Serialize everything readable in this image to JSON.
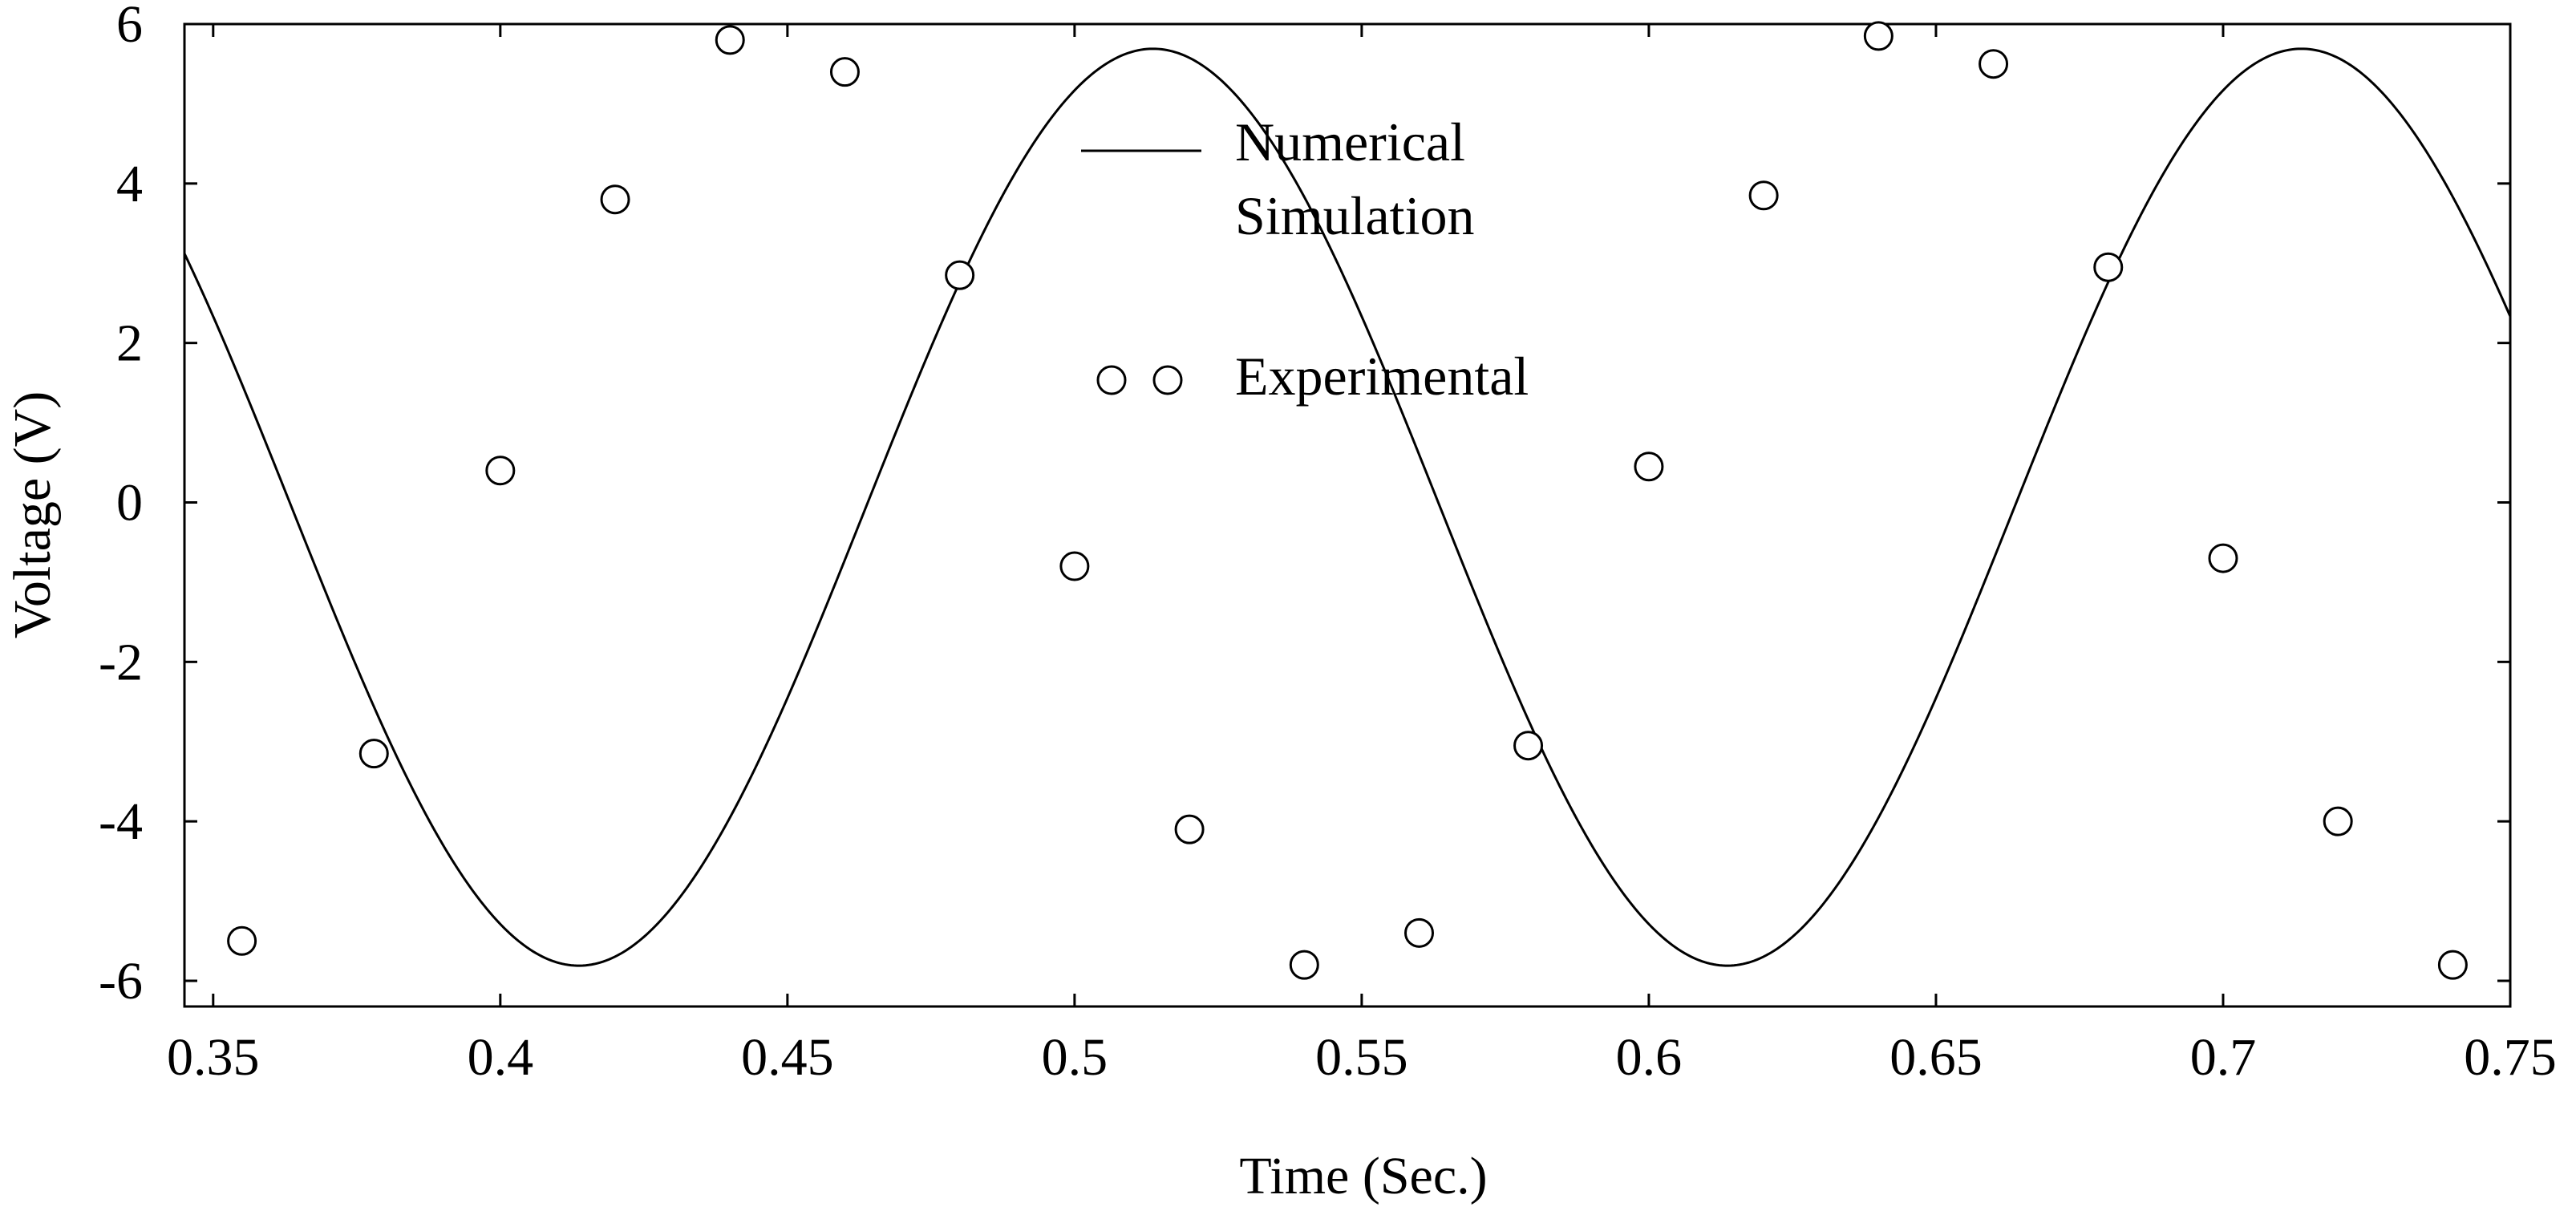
{
  "chart_data": {
    "type": "line",
    "title": "",
    "xlabel": "Time (Sec.)",
    "ylabel": "Voltage (V)",
    "xlim": [
      0.345,
      0.75
    ],
    "ylim": [
      -6,
      6
    ],
    "xticks": [
      0.35,
      0.4,
      0.45,
      0.5,
      0.55,
      0.6,
      0.65,
      0.7,
      0.75
    ],
    "xtick_labels": [
      "0.35",
      "0.4",
      "0.45",
      "0.5",
      "0.55",
      "0.6",
      "0.65",
      "0.7",
      "0.75"
    ],
    "yticks": [
      6,
      4,
      2,
      0,
      -2,
      -4,
      -6
    ],
    "ytick_labels": [
      "6",
      "4",
      "2",
      "0",
      "-2",
      "-4",
      "-6"
    ],
    "grid": false,
    "legend_position": "top-center",
    "series": [
      {
        "name": "Numerical Simulation",
        "legend_lines": [
          "Numerical",
          "Simulation"
        ],
        "style": "line",
        "color": "#000000",
        "model": {
          "amplitude": 5.75,
          "frequency_hz": 5,
          "phase_rad": -2.0,
          "offset": -0.06
        },
        "x_start": 0.345,
        "x_end": 0.75
      },
      {
        "name": "Experimental",
        "style": "open-circle",
        "color": "#000000",
        "x": [
          0.355,
          0.378,
          0.4,
          0.42,
          0.44,
          0.46,
          0.48,
          0.5,
          0.52,
          0.54,
          0.56,
          0.579,
          0.6,
          0.62,
          0.64,
          0.66,
          0.68,
          0.7,
          0.72,
          0.74
        ],
        "y": [
          -5.5,
          -3.15,
          0.4,
          3.8,
          5.8,
          5.4,
          2.85,
          -0.8,
          -4.1,
          -5.8,
          -5.4,
          -3.05,
          0.45,
          3.85,
          5.85,
          5.5,
          2.95,
          -0.7,
          -4.0,
          -5.8
        ]
      }
    ]
  }
}
